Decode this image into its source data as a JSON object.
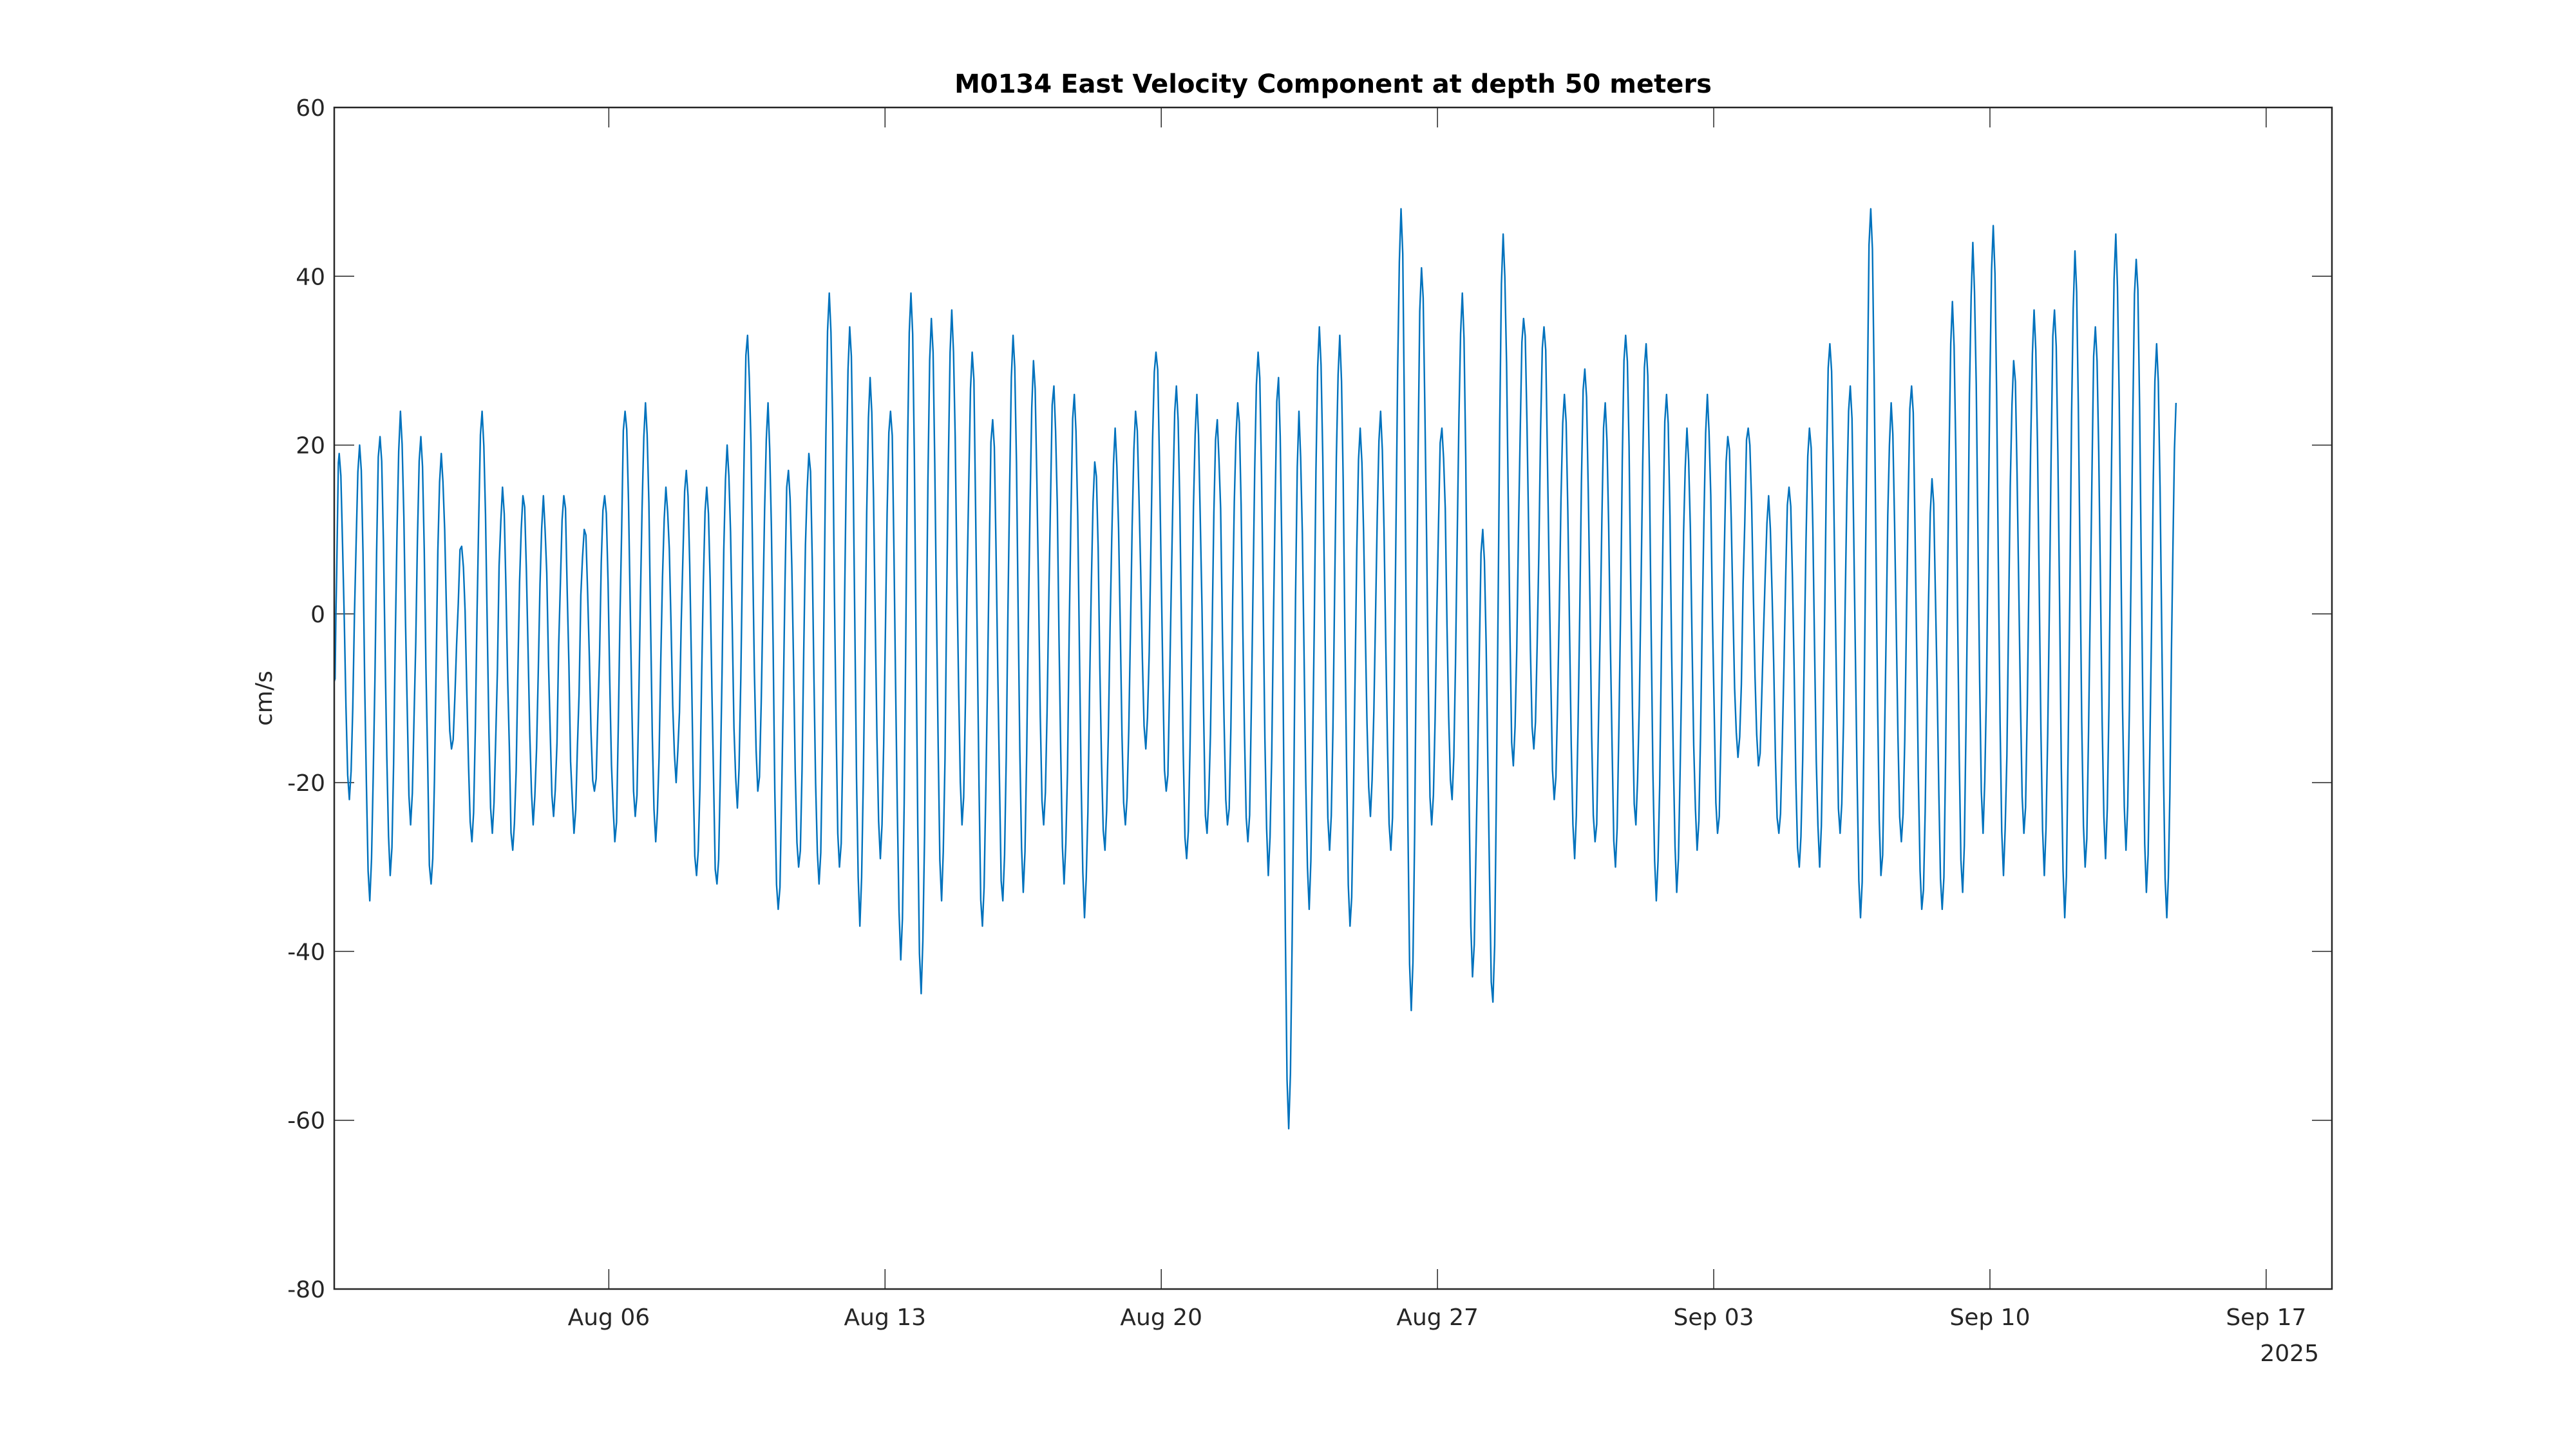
{
  "chart_data": {
    "type": "line",
    "title": "M0134 East Velocity Component at depth 50 meters",
    "xlabel": "",
    "ylabel": "cm/s",
    "xlim": [
      "2025-07-30T01:00",
      "2025-09-18T16:00"
    ],
    "ylim": [
      -80,
      60
    ],
    "yticks": [
      -80,
      -60,
      -40,
      -20,
      0,
      20,
      40,
      60
    ],
    "xticks": [
      {
        "date": "2025-08-06",
        "label": "Aug 06"
      },
      {
        "date": "2025-08-13",
        "label": "Aug 13"
      },
      {
        "date": "2025-08-20",
        "label": "Aug 20"
      },
      {
        "date": "2025-08-27",
        "label": "Aug 27"
      },
      {
        "date": "2025-09-03",
        "label": "Sep 03"
      },
      {
        "date": "2025-09-10",
        "label": "Sep 10"
      },
      {
        "date": "2025-09-17",
        "label": "Sep 17"
      }
    ],
    "year_label": "2025",
    "grid": false,
    "legend": "none",
    "series": [
      {
        "name": "East velocity",
        "color": "#0072BD",
        "start_value": -8,
        "first_extremum": "2025-07-30T04:00",
        "extremum_spacing_hours": 6.21,
        "peaks": [
          19,
          20,
          21,
          24,
          21,
          19,
          8,
          24,
          15,
          14,
          14,
          14,
          10,
          14,
          24,
          25,
          15,
          17,
          15,
          20,
          33,
          25,
          17,
          19,
          38,
          34,
          28,
          24,
          38,
          35,
          36,
          31,
          23,
          33,
          30,
          27,
          26,
          18,
          22,
          24,
          31,
          27,
          26,
          23,
          25,
          31,
          28,
          24,
          34,
          33,
          22,
          24,
          48,
          41,
          22,
          38,
          10,
          45,
          35,
          34,
          26,
          29,
          25,
          33,
          32,
          26,
          22,
          26,
          21,
          22,
          14,
          15,
          22,
          32,
          27,
          48,
          25,
          27,
          16,
          37,
          44,
          46,
          30,
          36,
          36,
          43,
          34,
          45,
          42,
          32
        ],
        "troughs": [
          -22,
          -34,
          -31,
          -25,
          -32,
          -16,
          -27,
          -26,
          -28,
          -25,
          -24,
          -26,
          -21,
          -27,
          -24,
          -27,
          -20,
          -31,
          -32,
          -23,
          -21,
          -35,
          -30,
          -32,
          -30,
          -37,
          -29,
          -41,
          -45,
          -34,
          -25,
          -37,
          -34,
          -33,
          -25,
          -32,
          -36,
          -28,
          -25,
          -16,
          -21,
          -29,
          -26,
          -25,
          -27,
          -31,
          -61,
          -35,
          -28,
          -37,
          -24,
          -28,
          -47,
          -25,
          -22,
          -43,
          -46,
          -18,
          -16,
          -22,
          -29,
          -27,
          -30,
          -25,
          -34,
          -33,
          -28,
          -26,
          -17,
          -18,
          -26,
          -30,
          -30,
          -26,
          -36,
          -31,
          -27,
          -35,
          -35,
          -33,
          -26,
          -31,
          -26,
          -31,
          -36,
          -30,
          -29,
          -28,
          -33,
          -36
        ],
        "end_value": 25
      }
    ]
  }
}
